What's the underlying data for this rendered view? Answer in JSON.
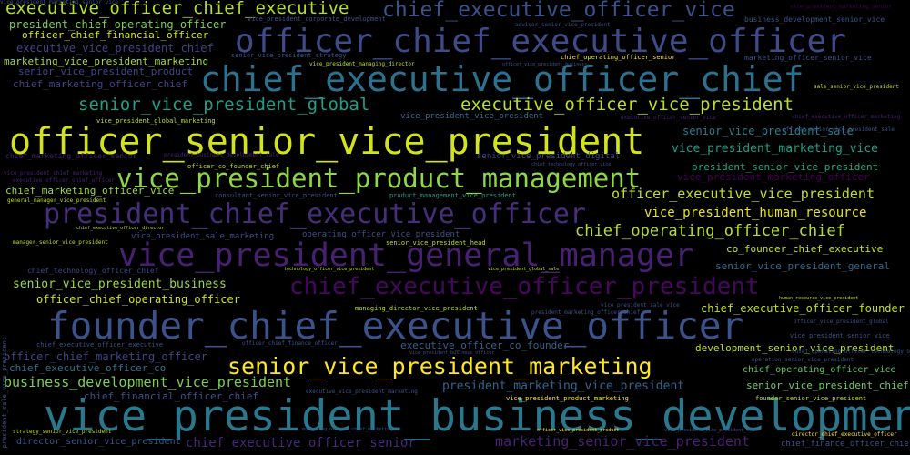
{
  "words": [
    {
      "t": "vice_president_business_development",
      "c": "#2a788e"
    },
    {
      "t": "founder_chief_executive_officer",
      "c": "#3b528b"
    },
    {
      "t": "officer_senior_vice_president",
      "c": "#d2e21b"
    },
    {
      "t": "chief_executive_officer_chief",
      "c": "#2c728e"
    },
    {
      "t": "officer_chief_executive_officer",
      "c": "#3e4a89"
    },
    {
      "t": "vice_president_general_manager",
      "c": "#482173"
    },
    {
      "t": "president_chief_executive_officer",
      "c": "#472d7b"
    },
    {
      "t": "vice_president_product_management",
      "c": "#8fd744"
    },
    {
      "t": "senior_vice_president_marketing",
      "c": "#fde725"
    },
    {
      "t": "chief_executive_officer_president",
      "c": "#46085c"
    },
    {
      "t": "chief_executive_officer_vice",
      "c": "#3b528b"
    },
    {
      "t": "executive_officer_chief_executive",
      "c": "#b5de2b"
    },
    {
      "t": "executive_officer_vice_president",
      "c": "#bddf26"
    },
    {
      "t": "senior_vice_president_global",
      "c": "#1f9e89"
    },
    {
      "t": "chief_operating_officer_chief",
      "c": "#b8de29"
    },
    {
      "t": "officer_executive_vice_president",
      "c": "#c2df23"
    },
    {
      "t": "vice_president_human_resource",
      "c": "#e7e419"
    },
    {
      "t": "business_development_vice_president",
      "c": "#7ad151"
    },
    {
      "t": "chief_executive_officer_senior",
      "c": "#482878"
    },
    {
      "t": "marketing_senior_vice_president",
      "c": "#482173"
    },
    {
      "t": "president_chief_operating_officer",
      "c": "#7ad151"
    },
    {
      "t": "officer_chief_financial_officer",
      "c": "#d8e219"
    },
    {
      "t": "executive_vice_president_chief",
      "c": "#414487"
    },
    {
      "t": "marketing_vice_president_marketing",
      "c": "#a5db36"
    },
    {
      "t": "senior_vice_president_product",
      "c": "#404688"
    },
    {
      "t": "vice_president_marketing_officer",
      "c": "#440154"
    },
    {
      "t": "chief_marketing_officer_chief",
      "c": "#414487"
    },
    {
      "t": "chief_marketing_officer_vice",
      "c": "#a0da39"
    },
    {
      "t": "senior_vice_president_business",
      "c": "#9bd93c"
    },
    {
      "t": "officer_chief_operating_officer",
      "c": "#d0e11c"
    },
    {
      "t": "senior_vice_president_sale",
      "c": "#287d8e"
    },
    {
      "t": "vice_president_marketing_vice",
      "c": "#1fa088"
    },
    {
      "t": "president_senior_vice_president",
      "c": "#22a884"
    },
    {
      "t": "marketing_officer_vice_president",
      "c": "#440154"
    },
    {
      "t": "co_founder_chief_executive",
      "c": "#c8e020"
    },
    {
      "t": "senior_vice_president_general",
      "c": "#31688e"
    },
    {
      "t": "chief_executive_officer_founder",
      "c": "#c0df25"
    },
    {
      "t": "development_senior_vice_president",
      "c": "#c0df25"
    },
    {
      "t": "officer_chief_marketing_officer",
      "c": "#414487"
    },
    {
      "t": "chief_executive_officer_co",
      "c": "#2c728e"
    },
    {
      "t": "chief_financial_officer_chief",
      "c": "#3b528b"
    },
    {
      "t": "president_marketing_vice_president",
      "c": "#33638d"
    },
    {
      "t": "executive_officer_co_founder",
      "c": "#355f8d"
    },
    {
      "t": "chief_operating_officer_vice",
      "c": "#5ec962"
    },
    {
      "t": "senior_vice_president_chief",
      "c": "#6ccd5a"
    },
    {
      "t": "director_senior_vice_president",
      "c": "#39568c"
    },
    {
      "t": "chief_finance_officer_chief",
      "c": "#3b528b"
    },
    {
      "t": "vice_president_sale_marketing",
      "c": "#3b528b"
    },
    {
      "t": "operating_officer_vice_president",
      "c": "#3b528b"
    },
    {
      "t": "chief_technology_officer_chief",
      "c": "#3e4989"
    },
    {
      "t": "senior_vice_president_digital",
      "c": "#3e4989"
    },
    {
      "t": "vice_president_global_marketing",
      "c": "#c2df23"
    },
    {
      "t": "vice_president_vice_president",
      "c": "#2f6c8e"
    },
    {
      "t": "vice_president_corporate_development",
      "c": "#3b528b"
    },
    {
      "t": "business_development_senior_vice",
      "c": "#3b528b"
    },
    {
      "t": "marketing_officer_senior_vice",
      "c": "#3b528b"
    },
    {
      "t": "vice_president_marketing_senior",
      "c": "#440154"
    },
    {
      "t": "advisor_senior_vice_president",
      "c": "#3b528b"
    },
    {
      "t": "senior_vice_president_strategy",
      "c": "#3b528b"
    },
    {
      "t": "chief_operating_officer_senior",
      "c": "#fde725"
    },
    {
      "t": "vice_president_managing_director",
      "c": "#c2df23"
    },
    {
      "t": "officer_vice_president_business",
      "c": "#3b528b"
    },
    {
      "t": "sale_senior_vice_president",
      "c": "#c2df23"
    },
    {
      "t": "chief_executive_officer_marketing",
      "c": "#482173"
    },
    {
      "t": "executive_officer_senior_vice",
      "c": "#482173"
    },
    {
      "t": "chief_marketing_officer_senior",
      "c": "#482173"
    },
    {
      "t": "president_business_development_sale",
      "c": "#482173"
    },
    {
      "t": "chief_technology_officer_vice",
      "c": "#3b528b"
    },
    {
      "t": "officer_co_founder_chief",
      "c": "#c2df23"
    },
    {
      "t": "vice_president_chief_marketing",
      "c": "#482173"
    },
    {
      "t": "executive_officer_chief_officer",
      "c": "#482173"
    },
    {
      "t": "consultant_senior_vice_president",
      "c": "#3b528b"
    },
    {
      "t": "product_management_vice_president",
      "c": "#1f9e89"
    },
    {
      "t": "general_manager_vice_president",
      "c": "#c2df23"
    },
    {
      "t": "chief_executive_officer_director",
      "c": "#c2df23"
    },
    {
      "t": "manager_senior_vice_president",
      "c": "#c2df23"
    },
    {
      "t": "senior_vice_president_head",
      "c": "#c2df23"
    },
    {
      "t": "technology_officer_vice_president",
      "c": "#c2df23"
    },
    {
      "t": "vice_president_global_sale",
      "c": "#c2df23"
    },
    {
      "t": "human_resource_vice_president",
      "c": "#c2df23"
    },
    {
      "t": "managing_director_vice_president",
      "c": "#c2df23"
    },
    {
      "t": "vice_president_sale_vice",
      "c": "#3b528b"
    },
    {
      "t": "president_marketing_officer_chief",
      "c": "#3b528b"
    },
    {
      "t": "officer_vice_president_global",
      "c": "#3b528b"
    },
    {
      "t": "vice_president_senior_vice",
      "c": "#3b528b"
    },
    {
      "t": "chief_executive_officer_executive",
      "c": "#3b528b"
    },
    {
      "t": "officer_chief_finance_officer",
      "c": "#3b528b"
    },
    {
      "t": "vice_president_business_officer",
      "c": "#3b528b"
    },
    {
      "t": "operation_senior_vice_president",
      "c": "#3b528b"
    },
    {
      "t": "president_chief_marketing_officer",
      "c": "#3b528b"
    },
    {
      "t": "executive_vice_president_marketing",
      "c": "#3b528b"
    },
    {
      "t": "vice_president_product_marketing",
      "c": "#fde725"
    },
    {
      "t": "founder_senior_vice_president",
      "c": "#c2df23"
    },
    {
      "t": "strategy_senior_vice_president",
      "c": "#c2df23"
    },
    {
      "t": "marketing_officer_chief_marketing",
      "c": "#3b528b"
    },
    {
      "t": "officer_vice_president_product",
      "c": "#fde725"
    },
    {
      "t": "vice_president_vice_president_chief",
      "c": "#3b528b"
    },
    {
      "t": "director_chief_executive_officer",
      "c": "#fde725"
    },
    {
      "t": "president_sale_vice_president",
      "c": "#3b528b"
    },
    {
      "t": "chief_operating_officer_technology_officer",
      "c": "#3b528b"
    },
    {
      "t": "officer_senior_vice_president_sale",
      "c": "#3b528b"
    },
    {
      "t": "vice_president_marketing_senior_vice",
      "c": "#3b528b"
    }
  ]
}
